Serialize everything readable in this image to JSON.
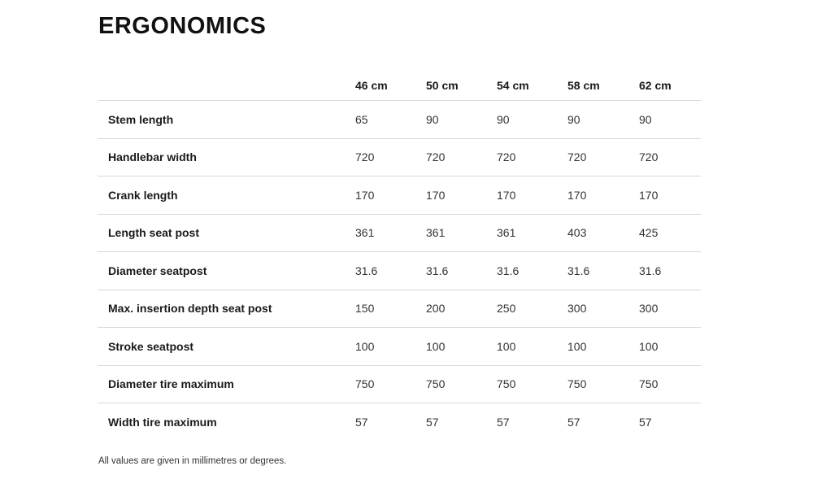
{
  "page": {
    "title": "ERGONOMICS",
    "footnote": "All values are given in millimetres or degrees."
  },
  "table": {
    "columns": [
      "46 cm",
      "50 cm",
      "54 cm",
      "58 cm",
      "62 cm"
    ],
    "rows": [
      {
        "label": "Stem length",
        "values": [
          "65",
          "90",
          "90",
          "90",
          "90"
        ]
      },
      {
        "label": "Handlebar width",
        "values": [
          "720",
          "720",
          "720",
          "720",
          "720"
        ]
      },
      {
        "label": "Crank length",
        "values": [
          "170",
          "170",
          "170",
          "170",
          "170"
        ]
      },
      {
        "label": "Length seat post",
        "values": [
          "361",
          "361",
          "361",
          "403",
          "425"
        ]
      },
      {
        "label": "Diameter seatpost",
        "values": [
          "31.6",
          "31.6",
          "31.6",
          "31.6",
          "31.6"
        ]
      },
      {
        "label": "Max. insertion depth seat post",
        "values": [
          "150",
          "200",
          "250",
          "300",
          "300"
        ]
      },
      {
        "label": "Stroke seatpost",
        "values": [
          "100",
          "100",
          "100",
          "100",
          "100"
        ]
      },
      {
        "label": "Diameter tire maximum",
        "values": [
          "750",
          "750",
          "750",
          "750",
          "750"
        ]
      },
      {
        "label": "Width tire maximum",
        "values": [
          "57",
          "57",
          "57",
          "57",
          "57"
        ]
      }
    ]
  },
  "colors": {
    "text": "#1a1a1a",
    "value_text": "#333333",
    "divider": "#d8d8d8"
  }
}
